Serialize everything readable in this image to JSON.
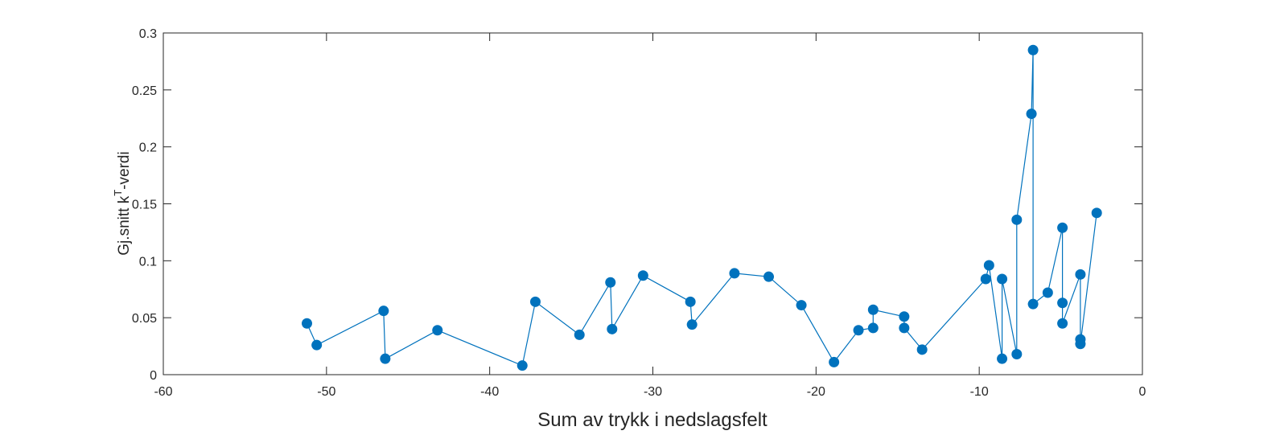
{
  "chart_data": {
    "type": "line",
    "xlabel": "Sum av trykk i nedslagsfelt",
    "ylabel": {
      "prefix": "Gj.snitt k",
      "superscript": "T",
      "suffix": "-verdi"
    },
    "xlim": [
      -60,
      0
    ],
    "ylim": [
      0,
      0.3
    ],
    "xticks": [
      -60,
      -50,
      -40,
      -30,
      -20,
      -10,
      0
    ],
    "xtick_labels": [
      "-60",
      "-50",
      "-40",
      "-30",
      "-20",
      "-10",
      "0"
    ],
    "yticks": [
      0,
      0.05,
      0.1,
      0.15,
      0.2,
      0.25,
      0.3
    ],
    "ytick_labels": [
      "0",
      "0.05",
      "0.1",
      "0.15",
      "0.2",
      "0.25",
      "0.3"
    ],
    "grid": false,
    "series": [
      {
        "color": "#0072BD",
        "marker": "circle",
        "x": [
          -51.2,
          -50.6,
          -46.5,
          -46.4,
          -43.2,
          -38.0,
          -37.2,
          -34.5,
          -32.6,
          -32.5,
          -30.6,
          -27.7,
          -27.6,
          -25.0,
          -22.9,
          -20.9,
          -18.9,
          -17.4,
          -16.5,
          -16.5,
          -14.6,
          -14.6,
          -13.5,
          -9.6,
          -9.4,
          -8.6,
          -8.6,
          -7.7,
          -7.7,
          -6.8,
          -6.7,
          -6.7,
          -5.8,
          -4.9,
          -4.9,
          -4.9,
          -3.8,
          -3.8,
          -3.8,
          -2.8
        ],
        "y": [
          0.045,
          0.026,
          0.056,
          0.014,
          0.039,
          0.008,
          0.064,
          0.035,
          0.081,
          0.04,
          0.087,
          0.064,
          0.044,
          0.089,
          0.086,
          0.061,
          0.011,
          0.039,
          0.041,
          0.057,
          0.051,
          0.041,
          0.022,
          0.084,
          0.096,
          0.014,
          0.084,
          0.018,
          0.136,
          0.229,
          0.285,
          0.062,
          0.072,
          0.129,
          0.063,
          0.045,
          0.088,
          0.031,
          0.027,
          0.142
        ]
      }
    ]
  }
}
